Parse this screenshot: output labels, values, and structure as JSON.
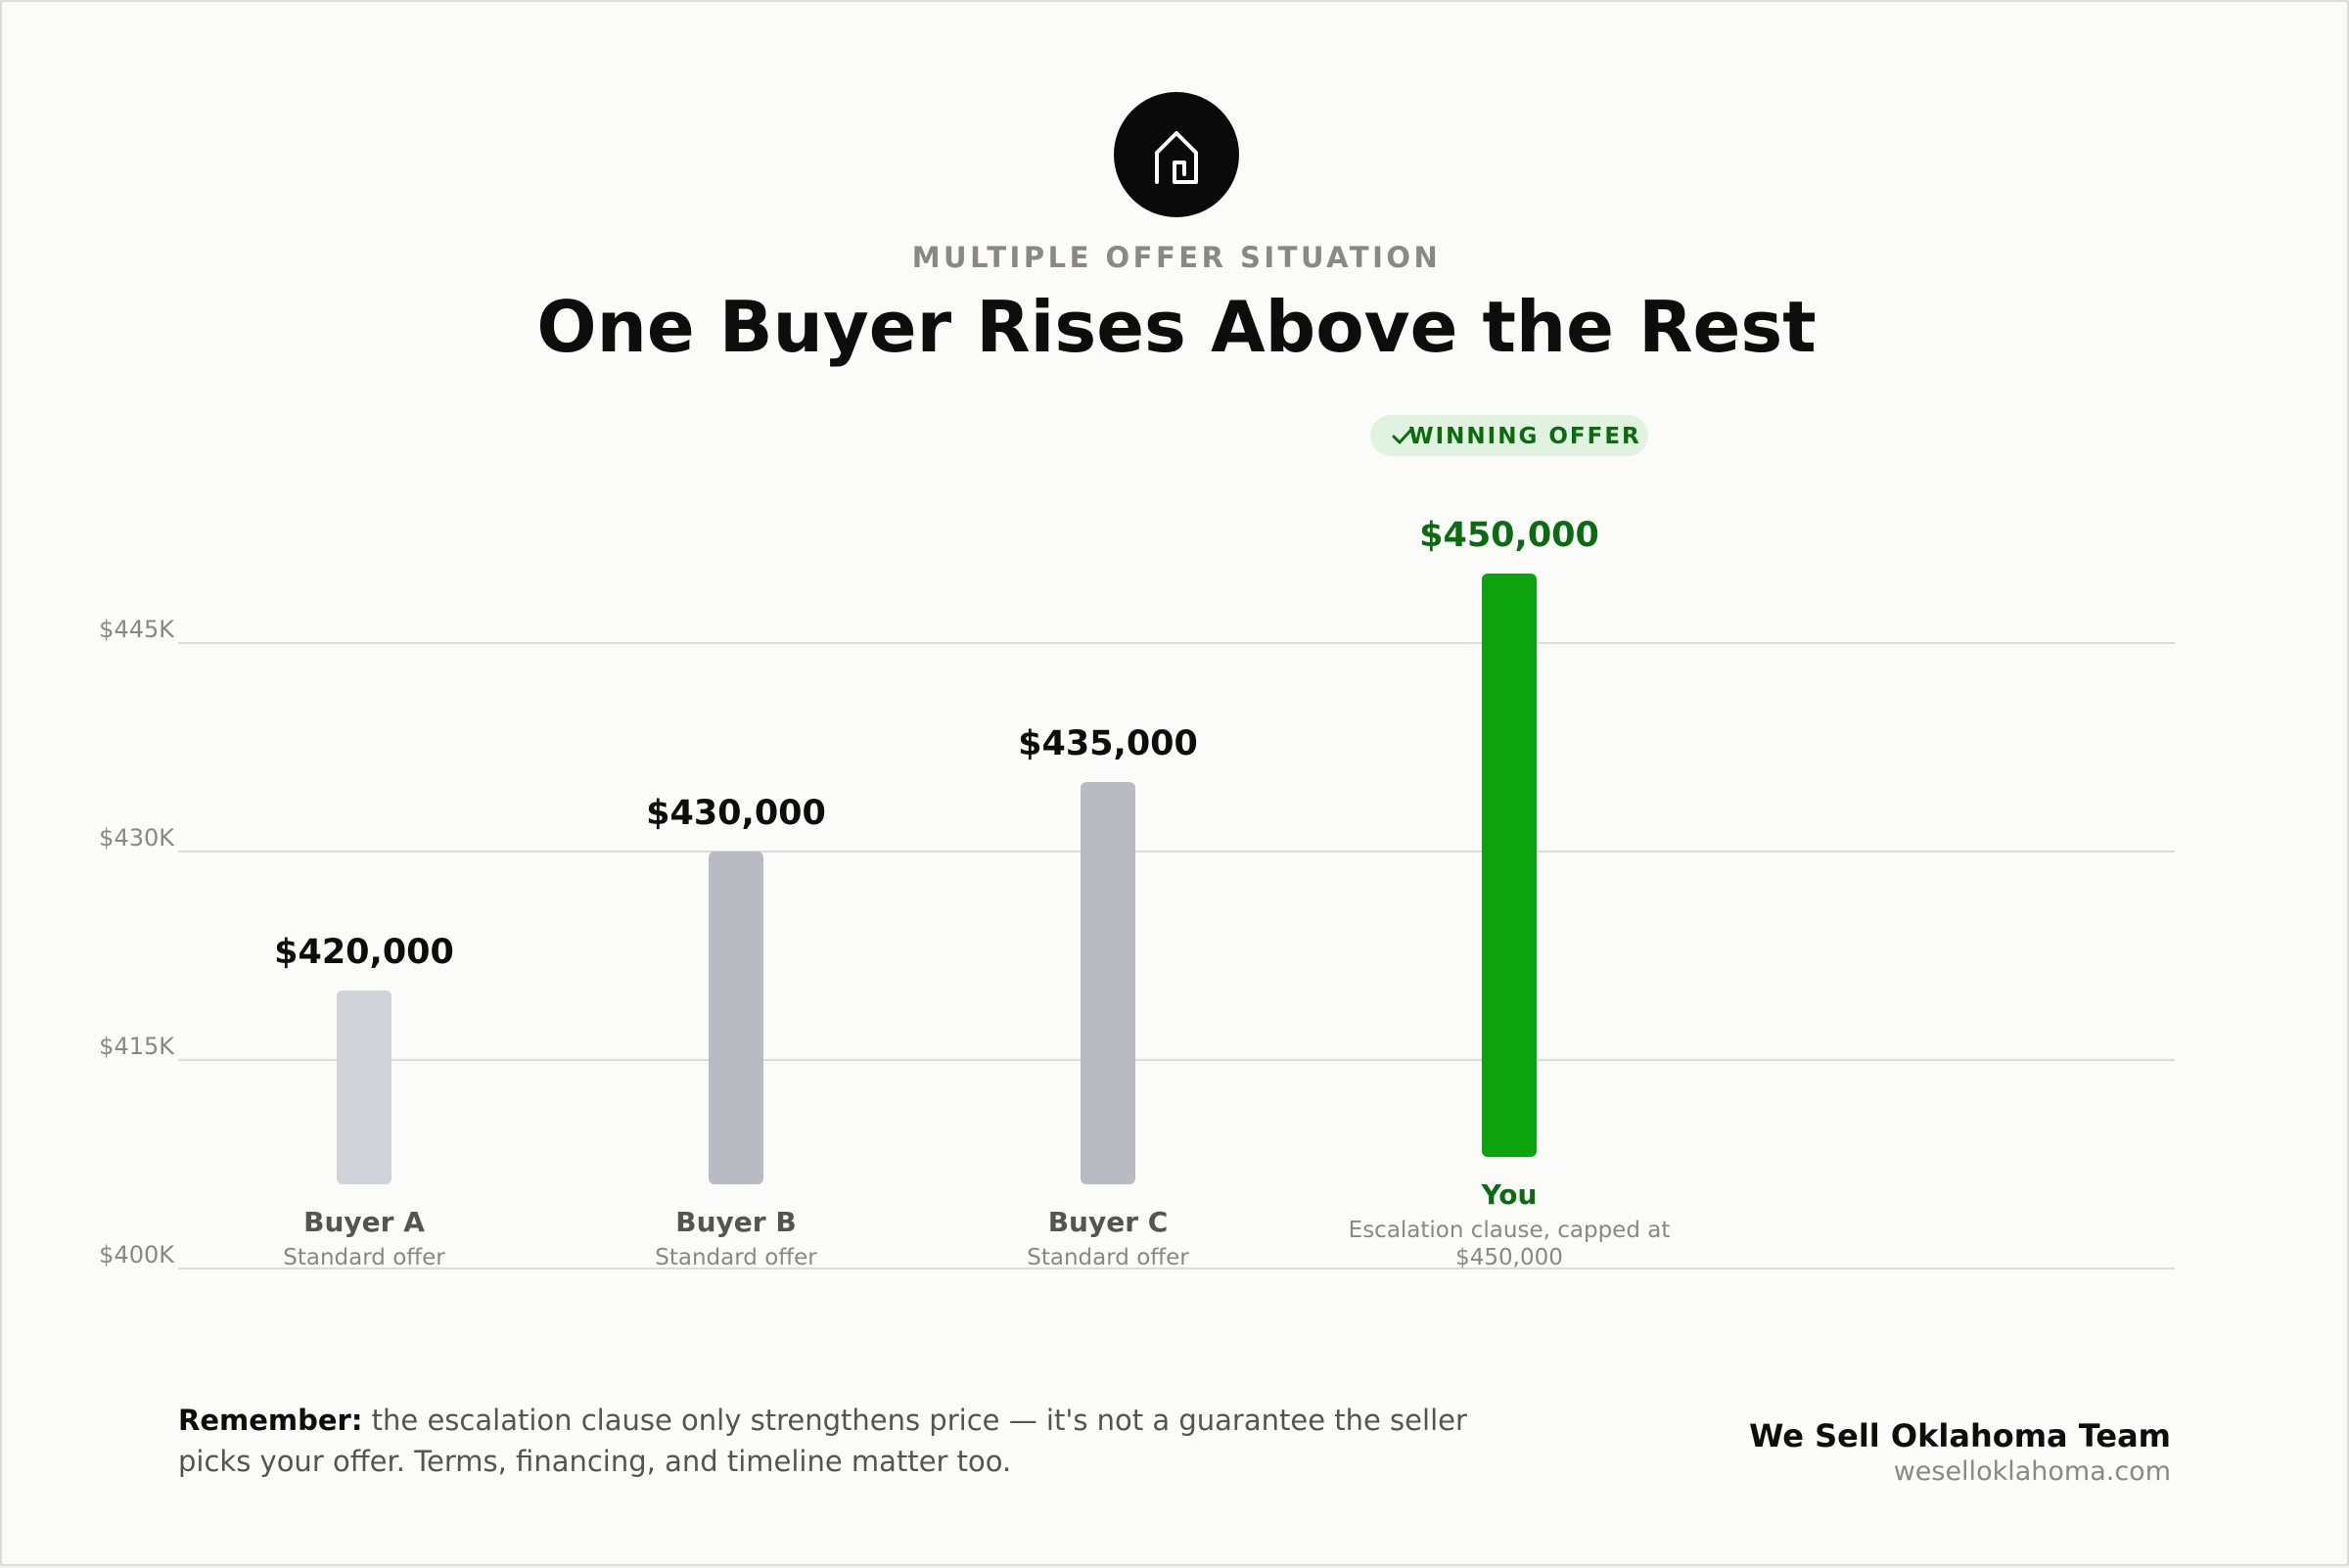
{
  "header": {
    "icon": "house-icon",
    "eyebrow": "MULTIPLE OFFER SITUATION",
    "title": "One Buyer Rises Above the Rest"
  },
  "chart_data": {
    "type": "bar",
    "title": "One Buyer Rises Above the Rest",
    "xlabel": "",
    "ylabel": "",
    "ylim": [
      400000,
      450000
    ],
    "y_ticks": [
      {
        "value": 400000,
        "label": "$400K"
      },
      {
        "value": 415000,
        "label": "$415K"
      },
      {
        "value": 430000,
        "label": "$430K"
      },
      {
        "value": 445000,
        "label": "$445K"
      }
    ],
    "grid": true,
    "categories": [
      "Buyer A",
      "Buyer B",
      "Buyer C",
      "You"
    ],
    "values": [
      420000,
      430000,
      435000,
      450000
    ],
    "bars": [
      {
        "name": "Buyer A",
        "value": 420000,
        "value_label": "$420,000",
        "subtitle": [
          "Standard offer"
        ],
        "color": "#d0d3d7",
        "highlight": false
      },
      {
        "name": "Buyer B",
        "value": 430000,
        "value_label": "$430,000",
        "subtitle": [
          "Standard offer"
        ],
        "color": "#b8bbc1",
        "highlight": false
      },
      {
        "name": "Buyer C",
        "value": 435000,
        "value_label": "$435,000",
        "subtitle": [
          "Standard offer"
        ],
        "color": "#b8bbc1",
        "highlight": false
      },
      {
        "name": "You",
        "value": 450000,
        "value_label": "$450,000",
        "subtitle": [
          "Escalation clause, capped at",
          "$450,000"
        ],
        "color": "#0ca30f",
        "highlight": true
      }
    ],
    "badge": {
      "text": "WINNING OFFER",
      "icon": "check-icon"
    },
    "colors": {
      "winner_text": "#0b6b10",
      "badge_bg": "#e1f3e0",
      "grid": "#dcdcdc"
    }
  },
  "footer": {
    "remember_label": "Remember:",
    "remember_text": " the escalation clause only strengthens price — it's not a guarantee the seller picks your offer. Terms, financing, and timeline matter too.",
    "brand_name": "We Sell Oklahoma Team",
    "brand_url": "weselloklahoma.com"
  }
}
